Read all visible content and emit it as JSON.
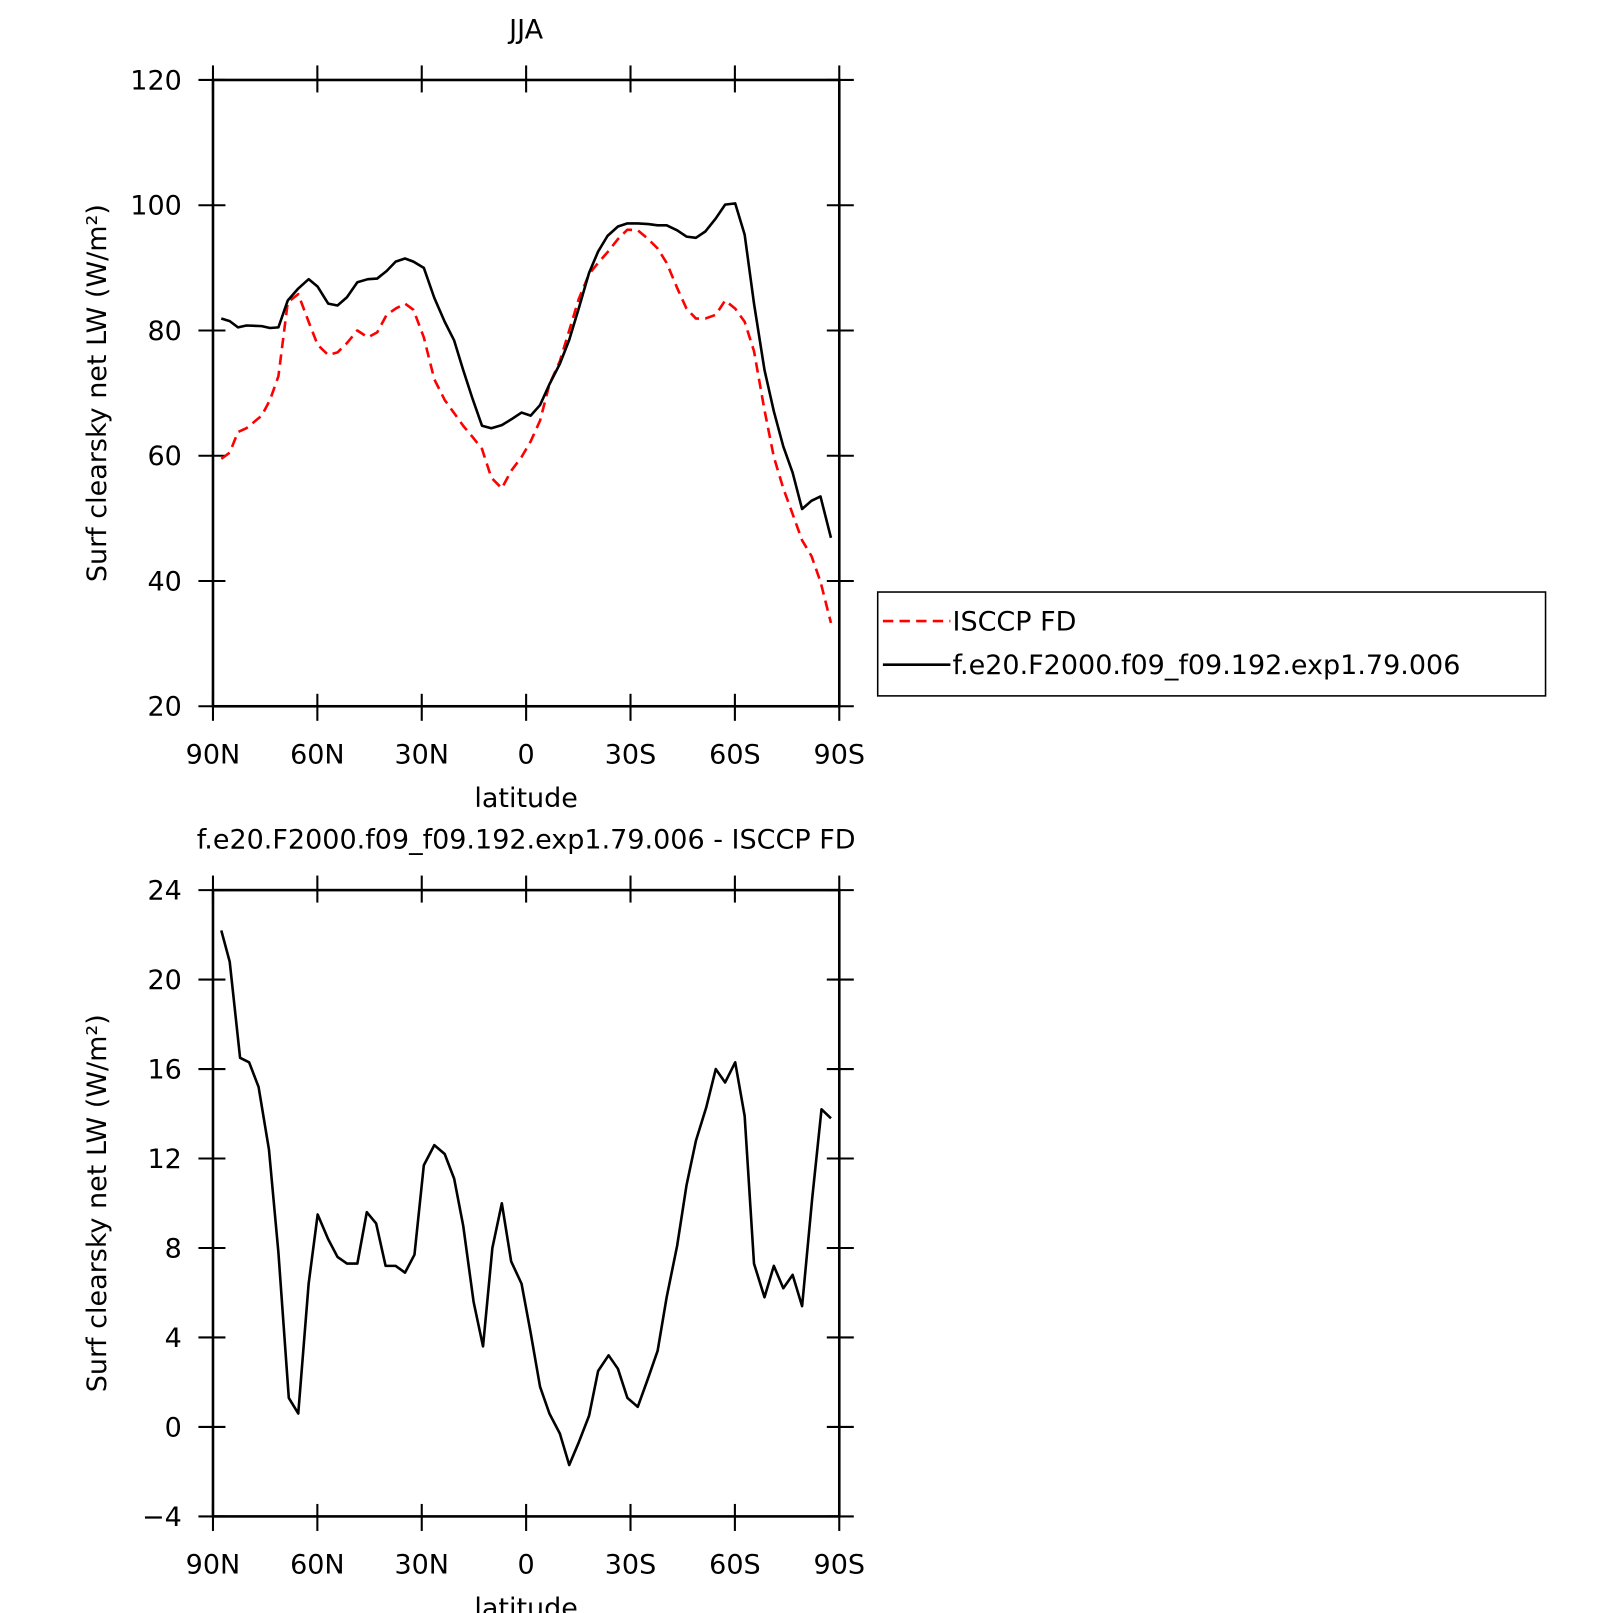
{
  "chart_data": [
    {
      "type": "line",
      "title": "JJA",
      "x_label": "latitude",
      "y_label": "Surf clearsky net LW (W/m²)",
      "xlim": [
        90,
        -90
      ],
      "xticks": [
        {
          "value": 90,
          "label": "90N"
        },
        {
          "value": 60,
          "label": "60N"
        },
        {
          "value": 30,
          "label": "30N"
        },
        0,
        {
          "value": -30,
          "label": "30S"
        },
        {
          "value": -60,
          "label": "60S"
        },
        {
          "value": -90,
          "label": "90S"
        }
      ],
      "ylim": [
        20,
        120
      ],
      "yticks": [
        20,
        40,
        60,
        80,
        100,
        120
      ],
      "legend": "right",
      "x": [
        87.6,
        85.2,
        82.8,
        80.4,
        76,
        73.6,
        71.2,
        68.5,
        65.5,
        62.5,
        59.9,
        56.9,
        54.2,
        51.5,
        48.5,
        45.5,
        42.8,
        40.1,
        37.5,
        34.8,
        32.4,
        29.4,
        26.4,
        23.4,
        20.7,
        18.1,
        15.4,
        12.7,
        10.0,
        7.0,
        4.3,
        1.3,
        -1.3,
        -4.0,
        -6.7,
        -9.7,
        -12.4,
        -15.1,
        -18.1,
        -20.7,
        -23.4,
        -26.4,
        -29.1,
        -32.1,
        -35.1,
        -37.8,
        -40.4,
        -43.4,
        -46.1,
        -48.8,
        -51.5,
        -54.5,
        -57.2,
        -60.1,
        -62.8,
        -65.5,
        -68.5,
        -71.2,
        -73.9,
        -76.6,
        -79.3,
        -82.0,
        -84.6,
        -87.6
      ],
      "series": [
        {
          "name": "ISCCP FD",
          "color": "#ff0000",
          "linestyle": "dashed",
          "values": [
            59.5,
            60.5,
            63.8,
            64.4,
            66.4,
            68.9,
            72.7,
            84.5,
            85.8,
            81.4,
            77.7,
            76.1,
            76.5,
            78.0,
            80.0,
            78.9,
            79.7,
            82.5,
            83.5,
            84.3,
            83.3,
            78.9,
            72.2,
            68.9,
            66.8,
            64.8,
            63.0,
            61.1,
            56.5,
            54.8,
            57.6,
            59.8,
            62.3,
            65.6,
            71.4,
            75.1,
            80.0,
            85.0,
            89.0,
            90.8,
            92.5,
            94.6,
            96.1,
            96.0,
            94.6,
            93.1,
            90.8,
            86.8,
            83.5,
            81.9,
            81.9,
            82.5,
            84.8,
            83.5,
            81.4,
            76.7,
            67.3,
            59.8,
            54.8,
            50.7,
            46.5,
            44.0,
            39.9,
            33.3
          ]
        },
        {
          "name": "f.e20.F2000.f09_f09.192.exp1.79.006",
          "color": "#000000",
          "linestyle": "solid",
          "values": [
            81.9,
            81.5,
            80.5,
            80.8,
            80.7,
            80.4,
            80.5,
            84.8,
            86.7,
            88.2,
            87.0,
            84.3,
            84.0,
            85.3,
            87.7,
            88.2,
            88.3,
            89.5,
            91.0,
            91.5,
            91.0,
            90.0,
            85.2,
            81.4,
            78.4,
            73.7,
            69.1,
            64.8,
            64.4,
            64.9,
            65.8,
            66.9,
            66.4,
            68.1,
            71.4,
            74.7,
            78.5,
            83.5,
            89.2,
            92.6,
            95.1,
            96.6,
            97.1,
            97.1,
            97.0,
            96.8,
            96.8,
            96.0,
            95.0,
            94.8,
            95.8,
            97.9,
            100.1,
            100.3,
            95.3,
            84.3,
            73.7,
            67.1,
            61.5,
            57.3,
            51.5,
            52.8,
            53.5,
            46.9
          ]
        }
      ]
    },
    {
      "type": "line",
      "title": "f.e20.F2000.f09_f09.192.exp1.79.006 - ISCCP FD",
      "x_label": "latitude",
      "y_label": "Surf clearsky net LW (W/m²)",
      "xlim": [
        90,
        -90
      ],
      "xticks": [
        {
          "value": 90,
          "label": "90N"
        },
        {
          "value": 60,
          "label": "60N"
        },
        {
          "value": 30,
          "label": "30N"
        },
        0,
        {
          "value": -30,
          "label": "30S"
        },
        {
          "value": -60,
          "label": "60S"
        },
        {
          "value": -90,
          "label": "90S"
        }
      ],
      "ylim": [
        -4,
        24
      ],
      "yticks": [
        {
          "value": -4,
          "label": "−4"
        },
        0,
        4,
        8,
        12,
        16,
        20,
        24
      ],
      "x": [
        87.6,
        85.2,
        82.2,
        79.6,
        76.9,
        73.9,
        71.2,
        68.2,
        65.5,
        62.5,
        59.9,
        56.9,
        54.2,
        51.5,
        48.5,
        45.8,
        43.1,
        40.4,
        37.5,
        34.8,
        32.1,
        29.4,
        26.4,
        23.4,
        20.7,
        18.1,
        15.1,
        12.4,
        9.7,
        7.0,
        4.3,
        1.3,
        -1.3,
        -4.0,
        -6.7,
        -9.7,
        -12.4,
        -15.1,
        -18.1,
        -20.7,
        -23.7,
        -26.4,
        -29.1,
        -32.1,
        -35.1,
        -37.8,
        -40.4,
        -43.4,
        -46.1,
        -48.8,
        -51.8,
        -54.5,
        -57.2,
        -60.1,
        -62.8,
        -65.5,
        -68.5,
        -71.2,
        -73.9,
        -76.6,
        -79.3,
        -82.2,
        -84.9,
        -87.6
      ],
      "series": [
        {
          "color": "#000000",
          "linestyle": "solid",
          "values": [
            22.2,
            20.8,
            16.5,
            16.3,
            15.2,
            12.4,
            7.8,
            1.3,
            0.6,
            6.4,
            9.5,
            8.4,
            7.6,
            7.3,
            7.3,
            9.6,
            9.1,
            7.2,
            7.2,
            6.9,
            7.7,
            11.7,
            12.6,
            12.2,
            11.1,
            9.0,
            5.6,
            3.6,
            8.0,
            10.0,
            7.4,
            6.4,
            4.2,
            1.8,
            0.6,
            -0.3,
            -1.7,
            -0.7,
            0.5,
            2.5,
            3.2,
            2.6,
            1.3,
            0.9,
            2.2,
            3.4,
            5.8,
            8.1,
            10.8,
            12.8,
            14.3,
            16.0,
            15.4,
            16.3,
            13.9,
            7.3,
            5.8,
            7.2,
            6.2,
            6.8,
            5.4,
            10.2,
            14.2,
            13.8
          ]
        }
      ]
    }
  ]
}
